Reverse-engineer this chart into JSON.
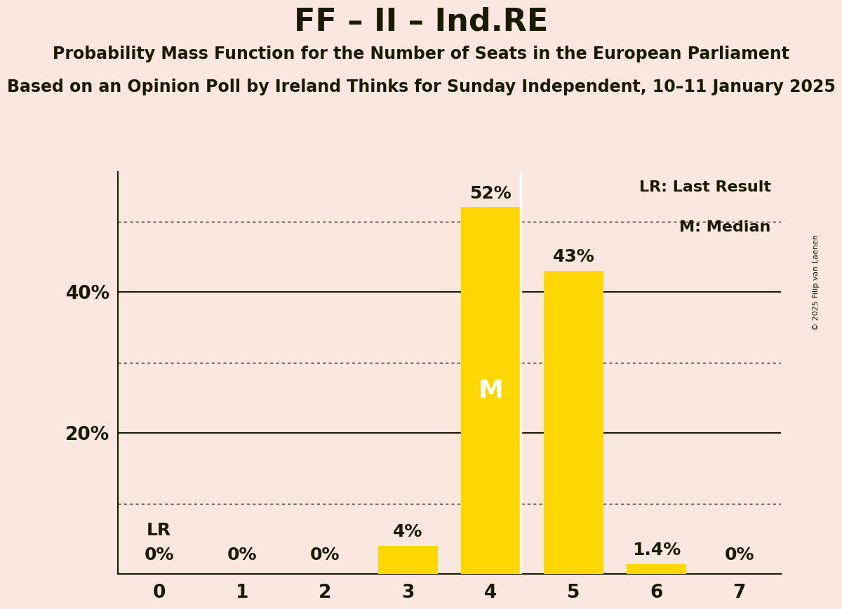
{
  "title": "FF – II – Ind.RE",
  "subtitle1": "Probability Mass Function for the Number of Seats in the European Parliament",
  "subtitle2": "Based on an Opinion Poll by Ireland Thinks for Sunday Independent, 10–11 January 2025",
  "copyright": "© 2025 Filip van Laenen",
  "categories": [
    0,
    1,
    2,
    3,
    4,
    5,
    6,
    7
  ],
  "values": [
    0.0,
    0.0,
    0.0,
    4.0,
    52.0,
    43.0,
    1.4,
    0.0
  ],
  "labels": [
    "0%",
    "0%",
    "0%",
    "4%",
    "52%",
    "43%",
    "1.4%",
    "0%"
  ],
  "bar_color": "#FFD700",
  "background_color": "#FAE8E0",
  "text_color": "#1a1a00",
  "median_seat": 4,
  "last_result_seat": 0,
  "lr_label": "LR",
  "legend_lr": "LR: Last Result",
  "legend_m": "M: Median",
  "median_label": "M",
  "median_label_color": "#FFFFFF",
  "ylim": [
    0,
    57
  ],
  "solid_gridlines": [
    20,
    40
  ],
  "dotted_gridlines": [
    10,
    30,
    50
  ],
  "ytick_positions": [
    20,
    40
  ],
  "ytick_labels": [
    "20%",
    "40%"
  ],
  "bar_width": 0.72
}
